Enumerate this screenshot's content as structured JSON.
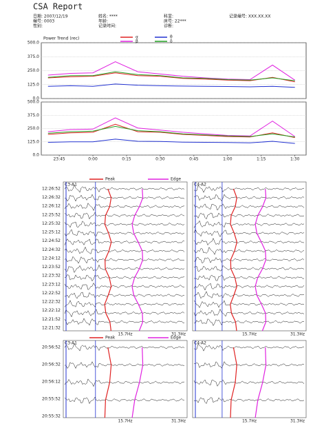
{
  "header": {
    "title": "CSA Report",
    "fields": [
      "日期: 2007/12/19",
      "编号: 0003",
      "性别:",
      "姓名: ****",
      "年龄:",
      "记录时间:",
      "科室:",
      "床号: 22***",
      "诊断:",
      "记录编号: XXX.XX.XX"
    ]
  },
  "chart_data": [
    {
      "type": "line",
      "title": "Power Trend (rec)",
      "x": [
        -5,
        5,
        15,
        25,
        35,
        45,
        55,
        65,
        75,
        85,
        95,
        105
      ],
      "xlim": [
        -8,
        110
      ],
      "ylim": [
        0,
        500
      ],
      "yticks": [
        {
          "value": 0,
          "label": "0.0"
        },
        {
          "value": 125,
          "label": "125.0"
        },
        {
          "value": 250,
          "label": "250.0"
        },
        {
          "value": 375,
          "label": "375.0"
        },
        {
          "value": 500,
          "label": "500.0"
        }
      ],
      "grid": true,
      "series": [
        {
          "name": "α",
          "color": "#e02020",
          "values": [
            185,
            195,
            200,
            230,
            205,
            200,
            180,
            175,
            165,
            160,
            190,
            150
          ]
        },
        {
          "name": "β",
          "color": "#e020e0",
          "values": [
            210,
            225,
            230,
            330,
            240,
            220,
            200,
            185,
            175,
            170,
            300,
            165
          ]
        },
        {
          "name": "θ",
          "color": "#2030d0",
          "values": [
            110,
            115,
            110,
            130,
            120,
            115,
            112,
            110,
            108,
            105,
            110,
            100
          ]
        },
        {
          "name": "δ",
          "color": "#20a020",
          "values": [
            190,
            205,
            205,
            240,
            215,
            205,
            185,
            180,
            170,
            165,
            185,
            160
          ]
        }
      ]
    },
    {
      "type": "line",
      "x": [
        -5,
        5,
        15,
        25,
        35,
        45,
        55,
        65,
        75,
        85,
        95,
        105
      ],
      "xlim": [
        -8,
        110
      ],
      "ylim": [
        0,
        500
      ],
      "yticks": [
        {
          "value": 0,
          "label": "0.0"
        },
        {
          "value": 125,
          "label": "125.0"
        },
        {
          "value": 250,
          "label": "250.0"
        },
        {
          "value": 375,
          "label": "375.0"
        },
        {
          "value": 500,
          "label": "500.0"
        }
      ],
      "grid": true,
      "xticks": [
        {
          "value": 0,
          "label": "23:45"
        },
        {
          "value": 15,
          "label": "0:00"
        },
        {
          "value": 30,
          "label": "0:15"
        },
        {
          "value": 45,
          "label": "0:30"
        },
        {
          "value": 60,
          "label": "0:45"
        },
        {
          "value": 75,
          "label": "1:00"
        },
        {
          "value": 90,
          "label": "1:15"
        },
        {
          "value": 105,
          "label": "1:30"
        }
      ],
      "series": [
        {
          "name": "α",
          "color": "#e02020",
          "values": [
            195,
            210,
            215,
            290,
            220,
            215,
            195,
            185,
            175,
            170,
            210,
            165
          ]
        },
        {
          "name": "β",
          "color": "#e020e0",
          "values": [
            220,
            240,
            245,
            350,
            255,
            235,
            215,
            200,
            185,
            180,
            320,
            175
          ]
        },
        {
          "name": "θ",
          "color": "#2030d0",
          "values": [
            120,
            125,
            125,
            150,
            130,
            128,
            122,
            120,
            118,
            115,
            130,
            110
          ]
        },
        {
          "name": "δ",
          "color": "#20a020",
          "values": [
            205,
            220,
            225,
            270,
            230,
            220,
            200,
            190,
            180,
            175,
            200,
            170
          ]
        }
      ]
    }
  ],
  "csa": {
    "legend": [
      "Peak",
      "Edge"
    ],
    "panels": [
      "C3-A1",
      "C4-A2"
    ],
    "top_times": [
      "12:26:52",
      "12:26:32",
      "12:26:12",
      "12:25:52",
      "12:25:32",
      "12:25:12",
      "12:24:52",
      "12:24:32",
      "12:24:12",
      "12:23:52",
      "12:23:32",
      "12:23:12",
      "12:22:52",
      "12:22:32",
      "12:22:12",
      "12:21:52",
      "12:21:32"
    ],
    "bottom_times": [
      "20:56:52",
      "20:56:32",
      "20:56:12",
      "20:55:52",
      "20:55:32"
    ],
    "freq_labels": [
      "15.7Hz",
      "31.3Hz"
    ]
  }
}
